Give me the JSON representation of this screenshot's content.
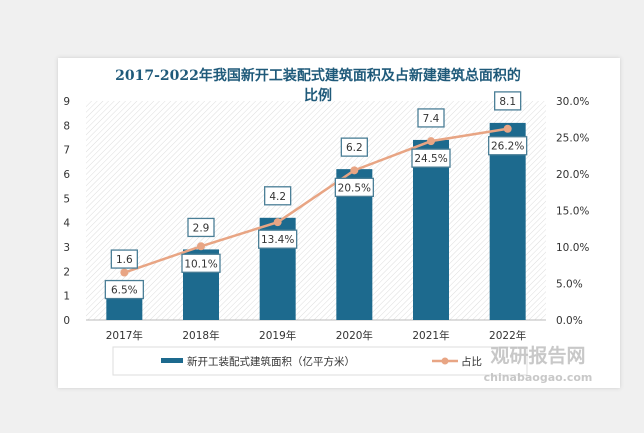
{
  "chart_data": {
    "type": "bar+line",
    "title": "2017-2022年我国新开工装配式建筑面积及占新建建筑总面积的比例",
    "title_lines": [
      "2017-2022年我国新开工装配式建筑面积及占新建建筑总面积的",
      "比例"
    ],
    "categories": [
      "2017年",
      "2018年",
      "2019年",
      "2020年",
      "2021年",
      "2022年"
    ],
    "series": [
      {
        "name": "新开工装配式建筑面积（亿平方米）",
        "type": "bar",
        "axis": "left",
        "values": [
          1.6,
          2.9,
          4.2,
          6.2,
          7.4,
          8.1
        ],
        "labels": [
          "1.6",
          "2.9",
          "4.2",
          "6.2",
          "7.4",
          "8.1"
        ],
        "color": "#1d6a8e"
      },
      {
        "name": "占比",
        "type": "line",
        "axis": "right",
        "values": [
          6.5,
          10.1,
          13.4,
          20.5,
          24.5,
          26.2
        ],
        "labels": [
          "6.5%",
          "10.1%",
          "13.4%",
          "20.5%",
          "24.5%",
          "26.2%"
        ],
        "color": "#e8a584"
      }
    ],
    "ylim_left": [
      0,
      9
    ],
    "yticks_left": [
      "0",
      "1",
      "2",
      "3",
      "4",
      "5",
      "6",
      "7",
      "8",
      "9"
    ],
    "ylim_right": [
      0,
      30
    ],
    "yticks_right": [
      "0.0%",
      "5.0%",
      "10.0%",
      "15.0%",
      "20.0%",
      "25.0%",
      "30.0%"
    ],
    "legend": "bottom",
    "grid": false
  },
  "watermark": {
    "brand": "观研报告网",
    "url": "chinabaogao.com"
  }
}
